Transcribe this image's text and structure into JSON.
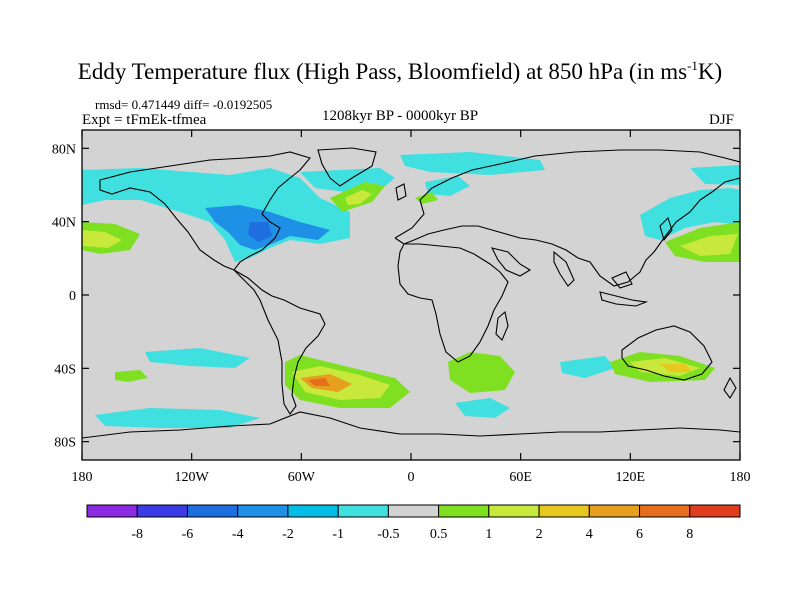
{
  "title": {
    "main": "Eddy Temperature flux (High Pass, Bloomfield) at 850 hPa (in ms",
    "sup": "-1",
    "end": "K)"
  },
  "stats": "rmsd= 0.471449 diff= -0.0192505",
  "experiment": "Expt = tFmEk-tfmea",
  "period": "1208kyr BP - 0000kyr BP",
  "season": "DJF",
  "map": {
    "background": "#d3d3d3",
    "lon_ticks": [
      "180",
      "120W",
      "60W",
      "0",
      "60E",
      "120E",
      "180"
    ],
    "lat_ticks": [
      "80N",
      "40N",
      "0",
      "40S",
      "80S"
    ],
    "lon_range": [
      -180,
      180
    ],
    "lat_range": [
      -90,
      90
    ]
  },
  "colorbar": {
    "colors": [
      "#8a2be2",
      "#3c3ce6",
      "#1e6ee0",
      "#1e90e6",
      "#00bee6",
      "#40e0e0",
      "#d3d3d3",
      "#7ee020",
      "#c8e83c",
      "#e6c81e",
      "#e6a01e",
      "#e66e1e",
      "#e03c1e"
    ],
    "labels": [
      "-8",
      "-6",
      "-4",
      "-2",
      "-1",
      "-0.5",
      "0.5",
      "1",
      "2",
      "4",
      "6",
      "8"
    ]
  }
}
